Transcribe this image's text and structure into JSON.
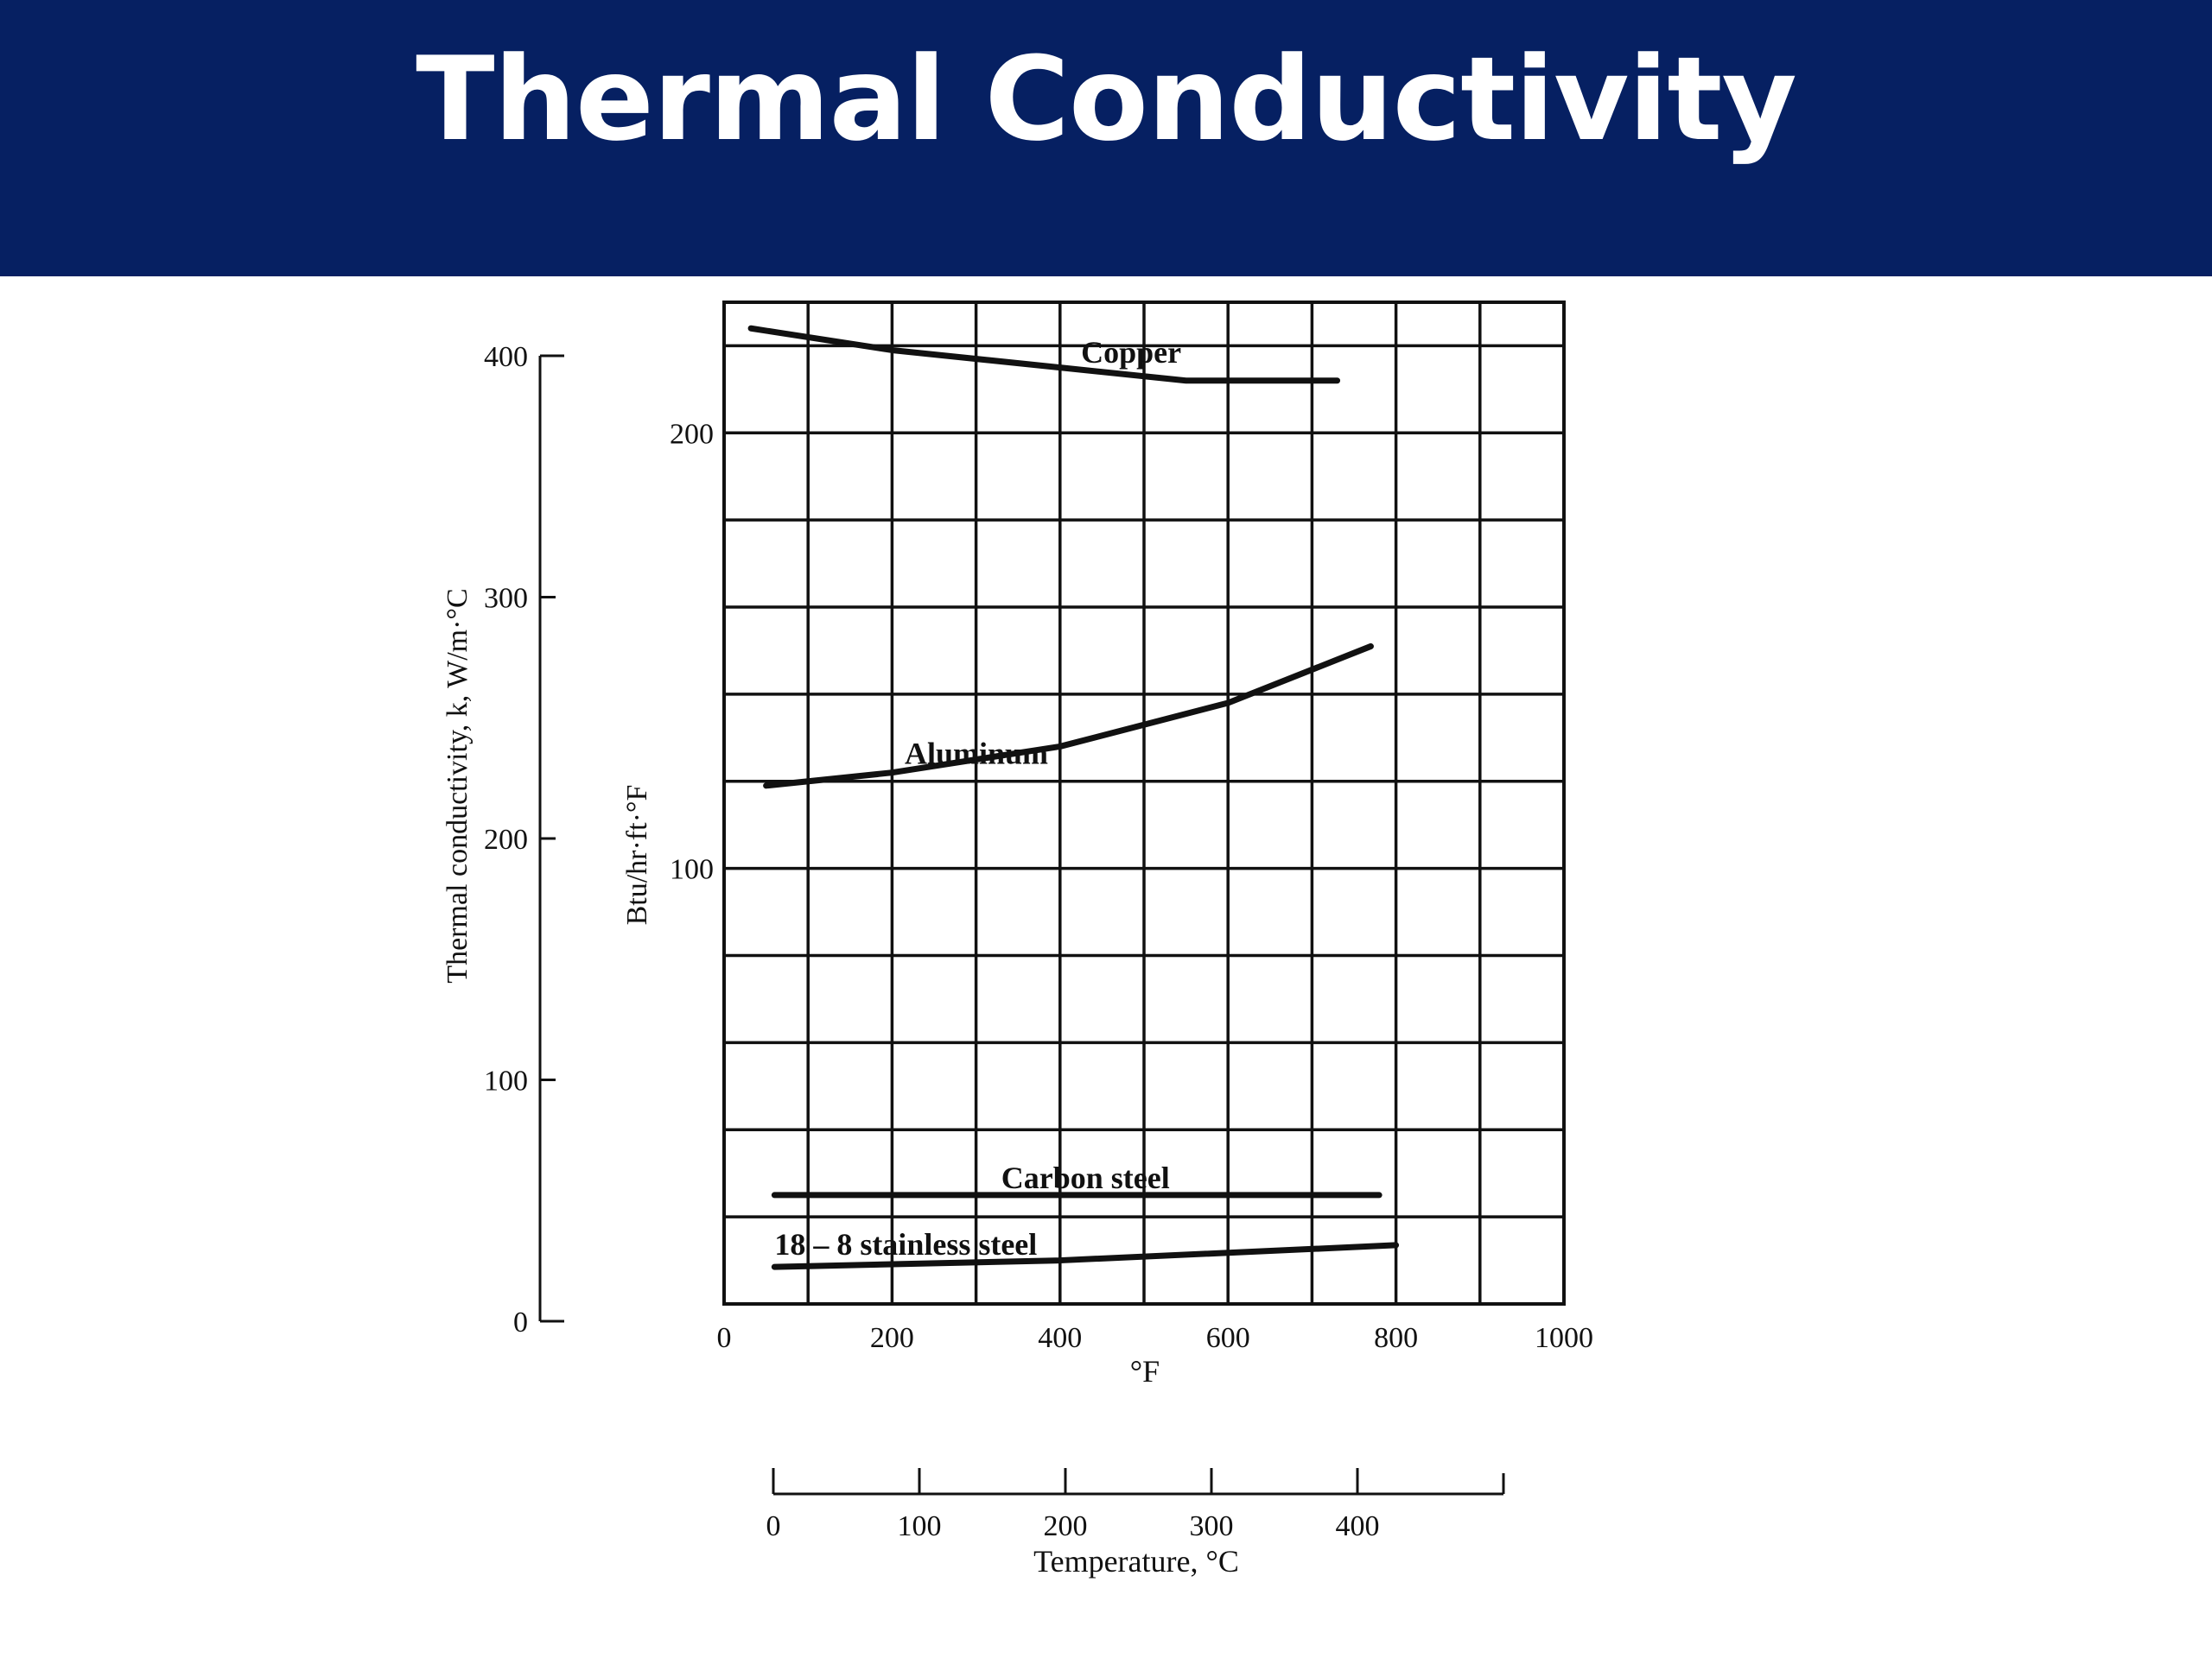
{
  "slide": {
    "title": "Thermal Conductivity",
    "colors": {
      "header_bg": "#062062",
      "title_text": "#ffffff",
      "ink": "#111111"
    }
  },
  "chart_data": {
    "type": "line",
    "title": "",
    "xlabel": "°F",
    "xlabel_secondary": "Temperature, °C",
    "ylabel": "Btu/hr·ft·°F",
    "ylabel_secondary": "Thermal conductivity, k, W/m·°C",
    "xlim": [
      0,
      1000
    ],
    "ylim": [
      0,
      230
    ],
    "secondary_x_range": [
      0,
      500
    ],
    "secondary_y_range": [
      0,
      400
    ],
    "grid": true,
    "x_ticks": [
      "0",
      "200",
      "400",
      "600",
      "800",
      "1000"
    ],
    "y_ticks": [
      "100",
      "200"
    ],
    "secondary_x_ticks": [
      "0",
      "100",
      "200",
      "300",
      "400"
    ],
    "secondary_y_ticks": [
      "0",
      "100",
      "200",
      "300",
      "400"
    ],
    "series": [
      {
        "name": "Copper",
        "x": [
          32,
          200,
          400,
          550,
          730
        ],
        "y": [
          224,
          219,
          215,
          212,
          212
        ]
      },
      {
        "name": "Aluminum",
        "x": [
          50,
          200,
          400,
          600,
          770
        ],
        "y": [
          119,
          122,
          128,
          138,
          151
        ]
      },
      {
        "name": "Carbon steel",
        "x": [
          60,
          400,
          780
        ],
        "y": [
          25,
          25,
          25
        ]
      },
      {
        "name": "18 – 8 stainless steel",
        "x": [
          60,
          400,
          800
        ],
        "y": [
          8.5,
          10,
          13.5
        ]
      }
    ]
  }
}
